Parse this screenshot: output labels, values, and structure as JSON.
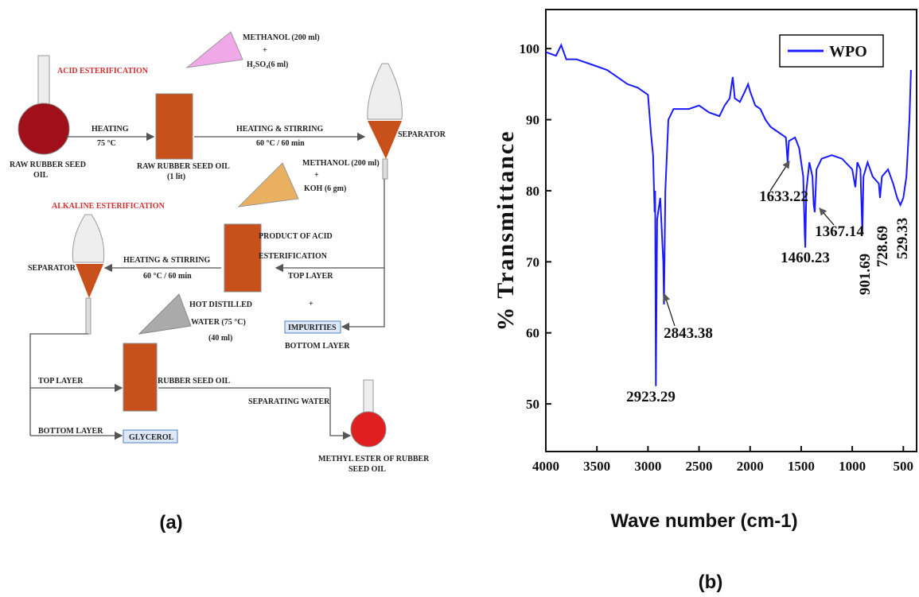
{
  "diagram": {
    "labels": [
      "ACID ESTERIFICATION",
      "METHANOL (200 ml)",
      "+",
      "H₂SO₄(6 ml)",
      "RAW RUBBER SEED",
      "OIL",
      "HEATING",
      "75 °C",
      "RAW RUBBER SEED OIL",
      "(1 lit)",
      "HEATING & STIRRING",
      "60 °C / 60 min",
      "SEPARATOR",
      "METHANOL (200 ml)",
      "+",
      "KOH (6 gm)",
      "ALKALINE ESTERIFICATION",
      "PRODUCT OF ACID",
      "ESTERIFICATION",
      "SEPARATOR",
      "HEATING & STIRRING",
      "60 °C / 60 min",
      "TOP LAYER",
      "+",
      "IMPURITIES",
      "BOTTOM LAYER",
      "HOT DISTILLED",
      "WATER (75 °C)",
      "(40 ml)",
      "TOP LAYER",
      "RUBBER SEED OIL",
      "SEPARATING WATER",
      "BOTTOM  LAYER",
      "GLYCEROL",
      "METHYL ESTER OF RUBBER",
      "SEED OIL"
    ],
    "caption": "(a)"
  },
  "chart_data": {
    "type": "line",
    "caption": "(b)",
    "xlabel": "Wave number (cm-1)",
    "ylabel": "% Transmittance",
    "x": [
      4000,
      3900,
      3850,
      3800,
      3700,
      3600,
      3500,
      3400,
      3300,
      3200,
      3100,
      3050,
      3000,
      2970,
      2950,
      2935,
      2930,
      2923,
      2910,
      2880,
      2860,
      2850,
      2843,
      2830,
      2800,
      2750,
      2700,
      2600,
      2500,
      2400,
      2300,
      2250,
      2200,
      2170,
      2150,
      2100,
      2050,
      2020,
      2000,
      1950,
      1900,
      1850,
      1800,
      1750,
      1700,
      1650,
      1633,
      1620,
      1560,
      1520,
      1480,
      1465,
      1460,
      1450,
      1420,
      1390,
      1377,
      1367,
      1350,
      1300,
      1200,
      1100,
      1000,
      970,
      950,
      920,
      901,
      890,
      850,
      800,
      740,
      728,
      710,
      650,
      600,
      560,
      529,
      500,
      470,
      440,
      425
    ],
    "series": [
      {
        "name": "WPO",
        "color": "#1a1aff",
        "values": [
          99.5,
          99,
          100.5,
          98.5,
          98.5,
          98,
          97.5,
          97,
          96,
          95,
          94.5,
          94,
          93.5,
          88,
          85,
          77,
          80,
          52.5,
          76,
          79,
          73,
          70,
          64,
          80,
          90,
          91.5,
          91.5,
          91.5,
          92,
          91,
          90.5,
          92,
          93,
          96,
          93,
          92.5,
          94,
          95,
          94,
          92,
          91.5,
          90,
          89,
          88.5,
          88,
          87.5,
          84,
          87,
          87.5,
          86,
          82,
          74,
          72,
          80,
          84,
          82,
          78,
          77,
          83,
          84.5,
          85,
          84.5,
          83,
          80.5,
          84,
          83,
          74,
          82,
          84,
          82,
          81,
          79,
          82,
          83,
          81,
          79,
          78,
          79,
          82,
          90,
          97
        ]
      }
    ],
    "annotations": [
      "2923.29",
      "2843.38",
      "1633.22",
      "1460.23",
      "1367.14",
      "901.69",
      "728.69",
      "529.33"
    ],
    "xlim": [
      4000,
      370
    ],
    "ylim": [
      43.3,
      105.5
    ],
    "xticks": [
      4000,
      3500,
      3000,
      2500,
      2000,
      1500,
      1000,
      500
    ],
    "yticks": [
      50,
      60,
      70,
      80,
      90,
      100
    ],
    "legend": "upper right"
  }
}
